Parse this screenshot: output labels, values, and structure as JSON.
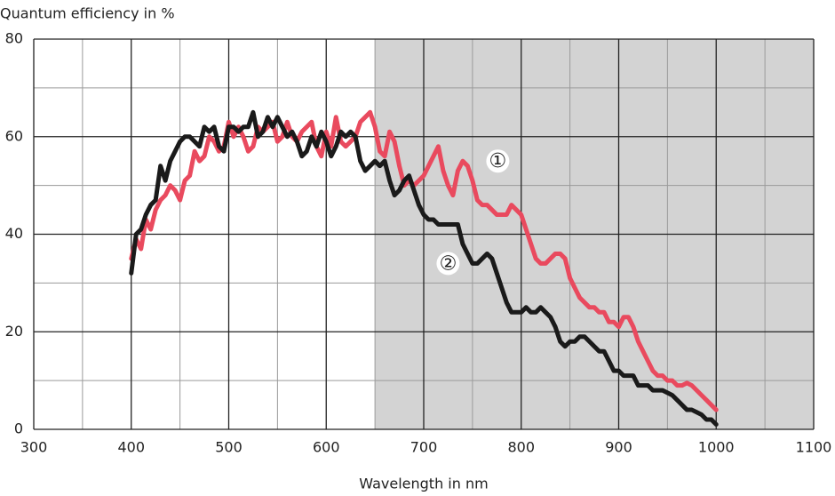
{
  "chart_data": {
    "type": "line",
    "y_label": "Quantum efficiency in %",
    "x_label": "Wavelength in nm",
    "xlim": [
      300,
      1100
    ],
    "ylim": [
      0,
      80
    ],
    "xticks": [
      300,
      400,
      500,
      600,
      700,
      800,
      900,
      1000,
      1100
    ],
    "yticks": [
      0,
      20,
      40,
      60,
      80
    ],
    "x_minor_ticks": [
      350,
      450,
      550,
      650,
      750,
      850,
      950,
      1050
    ],
    "y_minor_ticks": [
      10,
      30,
      50,
      70
    ],
    "grid": true,
    "shaded_xrange": [
      650,
      1100
    ],
    "shade_color": "#d3d3d3",
    "x": [
      400,
      405,
      410,
      415,
      420,
      425,
      430,
      435,
      440,
      445,
      450,
      455,
      460,
      465,
      470,
      475,
      480,
      485,
      490,
      495,
      500,
      505,
      510,
      515,
      520,
      525,
      530,
      535,
      540,
      545,
      550,
      555,
      560,
      565,
      570,
      575,
      580,
      585,
      590,
      595,
      600,
      605,
      610,
      615,
      620,
      625,
      630,
      635,
      640,
      645,
      650,
      655,
      660,
      665,
      670,
      675,
      680,
      685,
      690,
      695,
      700,
      705,
      710,
      715,
      720,
      725,
      730,
      735,
      740,
      745,
      750,
      755,
      760,
      765,
      770,
      775,
      780,
      785,
      790,
      795,
      800,
      805,
      810,
      815,
      820,
      825,
      830,
      835,
      840,
      845,
      850,
      855,
      860,
      865,
      870,
      875,
      880,
      885,
      890,
      895,
      900,
      905,
      910,
      915,
      920,
      925,
      930,
      935,
      940,
      945,
      950,
      955,
      960,
      965,
      970,
      975,
      980,
      985,
      990,
      995,
      1000
    ],
    "series": [
      {
        "name": "①",
        "color": "#e94a5e",
        "values": [
          35,
          39,
          37,
          43,
          41,
          45,
          47,
          48,
          50,
          49,
          47,
          51,
          52,
          57,
          55,
          56,
          60,
          59,
          57,
          58,
          63,
          60,
          62,
          60,
          57,
          58,
          62,
          61,
          62,
          63,
          59,
          60,
          63,
          60,
          59,
          61,
          62,
          63,
          58,
          56,
          61,
          58,
          64,
          59,
          58,
          59,
          60,
          63,
          64,
          65,
          62,
          57,
          56,
          61,
          59,
          54,
          50,
          51,
          50,
          51,
          52,
          54,
          56,
          58,
          53,
          50,
          48,
          53,
          55,
          54,
          51,
          47,
          46,
          46,
          45,
          44,
          44,
          44,
          46,
          45,
          44,
          41,
          38,
          35,
          34,
          34,
          35,
          36,
          36,
          35,
          31,
          29,
          27,
          26,
          25,
          25,
          24,
          24,
          22,
          22,
          21,
          23,
          23,
          21,
          18,
          16,
          14,
          12,
          11,
          11,
          10,
          10,
          9,
          9,
          9.5,
          9,
          8,
          7,
          6,
          5,
          4
        ]
      },
      {
        "name": "②",
        "color": "#1a1a1a",
        "values": [
          32,
          40,
          41,
          44,
          46,
          47,
          54,
          51,
          55,
          57,
          59,
          60,
          60,
          59,
          58,
          62,
          61,
          62,
          58,
          57,
          62,
          62,
          61,
          62,
          62,
          65,
          60,
          61,
          64,
          62,
          64,
          62,
          60,
          61,
          59,
          56,
          57,
          60,
          58,
          61,
          59,
          56,
          58,
          61,
          60,
          61,
          60,
          55,
          53,
          54,
          55,
          54,
          55,
          51,
          48,
          49,
          51,
          52,
          49,
          46,
          44,
          43,
          43,
          42,
          42,
          42,
          42,
          42,
          38,
          36,
          34,
          34,
          35,
          36,
          35,
          32,
          29,
          26,
          24,
          24,
          24,
          25,
          24,
          24,
          25,
          24,
          23,
          21,
          18,
          17,
          18,
          18,
          19,
          19,
          18,
          17,
          16,
          16,
          14,
          12,
          12,
          11,
          11,
          11,
          9,
          9,
          9,
          8,
          8,
          8,
          7.5,
          7,
          6,
          5,
          4,
          4,
          3.5,
          3,
          2,
          2,
          1
        ]
      }
    ],
    "annotations": [
      {
        "text": "①",
        "x": 776,
        "y": 55
      },
      {
        "text": "②",
        "x": 725,
        "y": 34
      }
    ]
  }
}
